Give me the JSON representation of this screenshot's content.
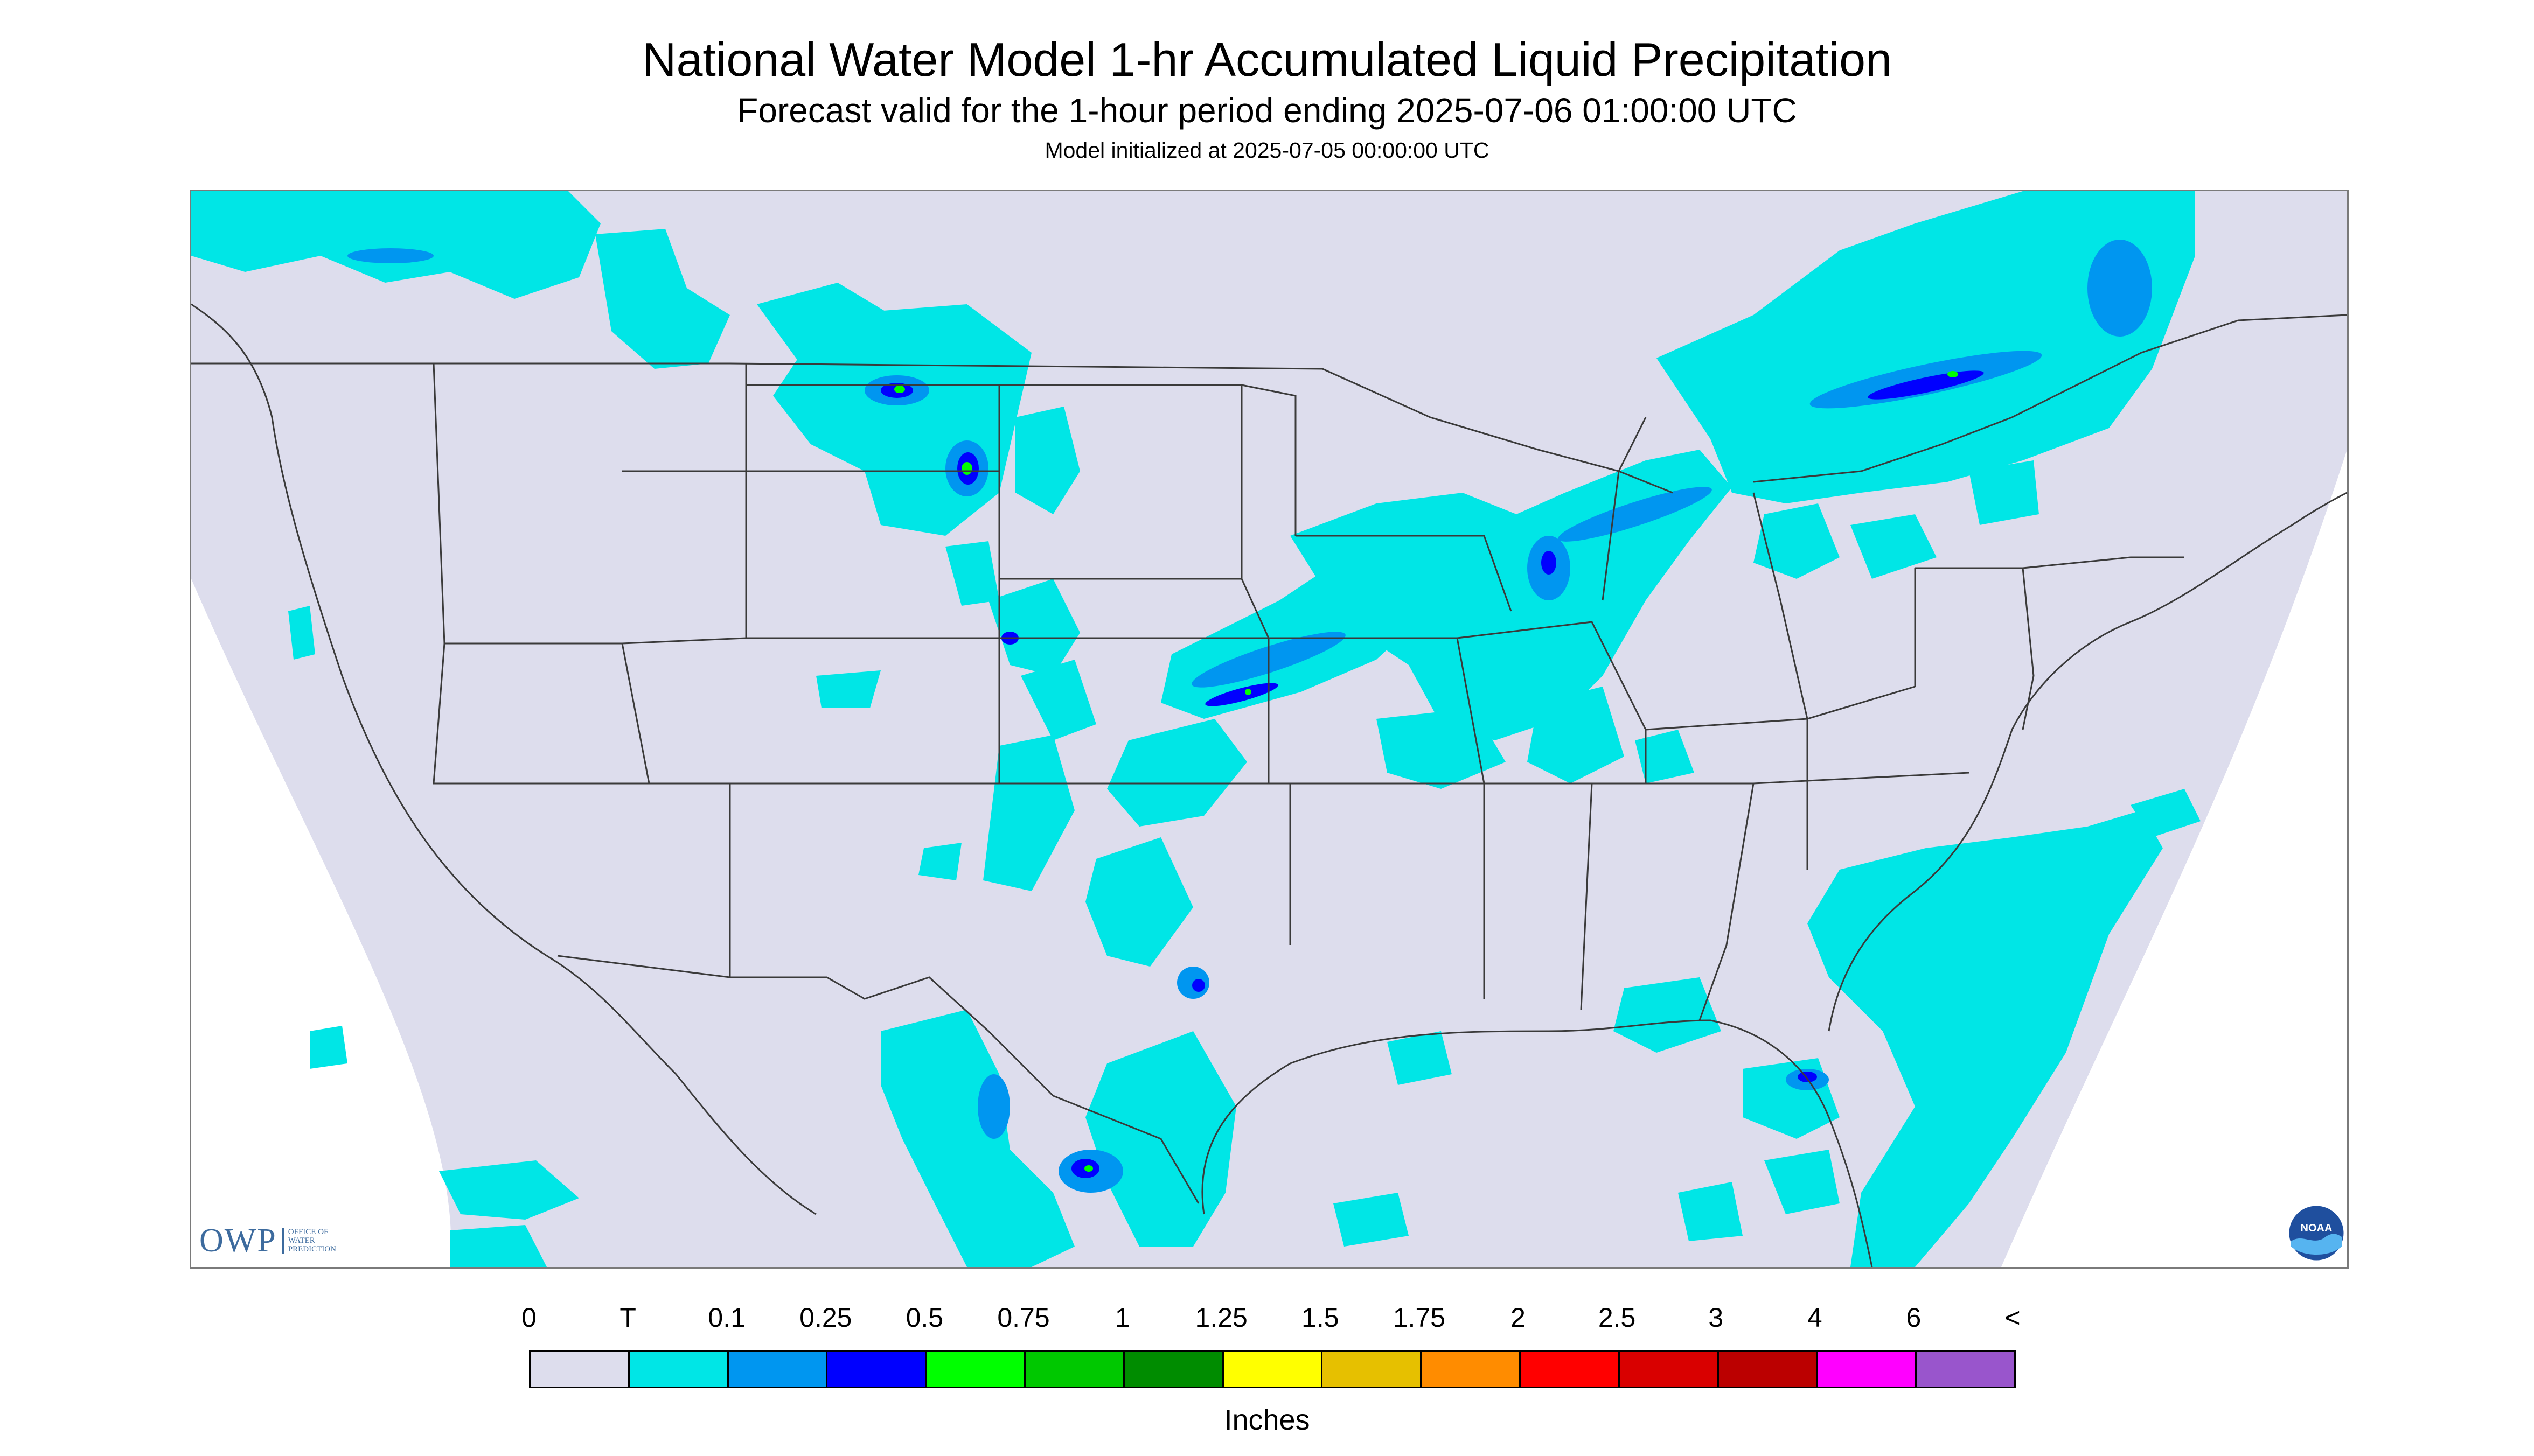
{
  "header": {
    "title": "National Water Model 1-hr Accumulated Liquid Precipitation",
    "subtitle": "Forecast valid for the 1-hour period ending 2025-07-06 01:00:00 UTC",
    "init": "Model initialized at 2025-07-05 00:00:00 UTC"
  },
  "map": {
    "background_color": "#dddded",
    "outside_color": "#ffffff",
    "border_color": "#3a3a3a",
    "region": "Contiguous United States"
  },
  "logos": {
    "owp": {
      "text": "OWP",
      "sub": [
        "OFFICE OF",
        "WATER",
        "PREDICTION"
      ]
    },
    "noaa": {
      "text": "NOAA"
    }
  },
  "legend": {
    "labels": [
      "0",
      "T",
      "0.1",
      "0.25",
      "0.5",
      "0.75",
      "1",
      "1.25",
      "1.5",
      "1.75",
      "2",
      "2.5",
      "3",
      "4",
      "6",
      "<"
    ],
    "colors": [
      "#dddded",
      "#00e6e6",
      "#0096f0",
      "#0000ff",
      "#00ff00",
      "#00c800",
      "#008c00",
      "#ffff00",
      "#e6c000",
      "#ff8c00",
      "#ff0000",
      "#d90000",
      "#bb0000",
      "#ff00ff",
      "#9955cc"
    ],
    "units": "Inches"
  }
}
